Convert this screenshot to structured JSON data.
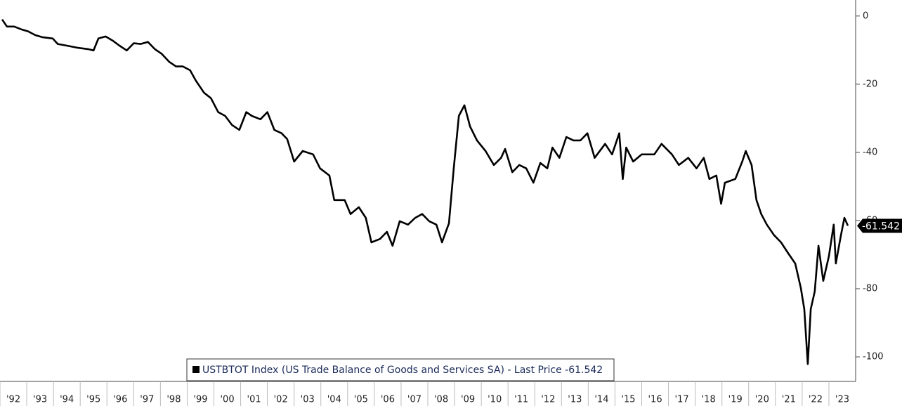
{
  "chart_data": {
    "type": "line",
    "x": [
      1992.08,
      1992.26,
      1992.53,
      1992.79,
      1993.05,
      1993.32,
      1993.58,
      1993.97,
      1994.16,
      1994.5,
      1994.89,
      1995.29,
      1995.5,
      1995.68,
      1995.95,
      1996.21,
      1996.47,
      1996.74,
      1997.0,
      1997.26,
      1997.53,
      1997.79,
      1998.05,
      1998.32,
      1998.58,
      1998.84,
      1999.11,
      1999.32,
      1999.63,
      1999.89,
      2000.16,
      2000.42,
      2000.68,
      2000.95,
      2001.21,
      2001.42,
      2001.74,
      2002.0,
      2002.26,
      2002.53,
      2002.74,
      2003.0,
      2003.32,
      2003.71,
      2003.97,
      2004.32,
      2004.5,
      2004.89,
      2005.11,
      2005.42,
      2005.68,
      2005.89,
      2006.21,
      2006.47,
      2006.68,
      2006.95,
      2007.26,
      2007.53,
      2007.79,
      2008.05,
      2008.32,
      2008.53,
      2008.79,
      2008.97,
      2009.16,
      2009.37,
      2009.58,
      2009.84,
      2010.16,
      2010.47,
      2010.74,
      2010.89,
      2011.16,
      2011.42,
      2011.68,
      2011.95,
      2012.21,
      2012.47,
      2012.66,
      2012.92,
      2013.18,
      2013.45,
      2013.71,
      2013.97,
      2014.24,
      2014.63,
      2014.89,
      2015.16,
      2015.29,
      2015.42,
      2015.68,
      2016.0,
      2016.47,
      2016.74,
      2017.13,
      2017.39,
      2017.74,
      2018.05,
      2018.32,
      2018.53,
      2018.79,
      2018.97,
      2019.11,
      2019.5,
      2019.76,
      2019.89,
      2020.11,
      2020.29,
      2020.47,
      2020.68,
      2020.95,
      2021.21,
      2021.47,
      2021.74,
      2021.95,
      2022.08,
      2022.21,
      2022.32,
      2022.47,
      2022.61,
      2022.79,
      2023.0,
      2023.18,
      2023.26,
      2023.45,
      2023.58,
      2023.71
    ],
    "series": [
      {
        "name": "USTBTOT Index (US Trade Balance of Goods and Services SA) - Last Price",
        "color": "#000000",
        "values": [
          -1.0,
          -3.1,
          -3.1,
          -3.9,
          -4.5,
          -5.6,
          -6.2,
          -6.6,
          -8.2,
          -8.7,
          -9.3,
          -9.7,
          -10.1,
          -6.6,
          -6.0,
          -7.2,
          -8.7,
          -10.1,
          -8.0,
          -8.2,
          -7.6,
          -9.7,
          -11.1,
          -13.4,
          -14.8,
          -14.8,
          -15.9,
          -18.9,
          -22.5,
          -24.1,
          -28.2,
          -29.3,
          -32.0,
          -33.4,
          -28.2,
          -29.3,
          -30.3,
          -28.2,
          -33.4,
          -34.4,
          -36.1,
          -42.7,
          -39.6,
          -40.6,
          -44.7,
          -46.8,
          -54.0,
          -54.0,
          -58.1,
          -56.1,
          -59.2,
          -66.4,
          -65.4,
          -63.3,
          -67.4,
          -60.2,
          -61.2,
          -59.2,
          -58.1,
          -60.2,
          -61.2,
          -66.4,
          -60.8,
          -44.7,
          -29.3,
          -26.2,
          -32.4,
          -36.5,
          -39.6,
          -43.7,
          -41.6,
          -39.0,
          -45.8,
          -43.7,
          -44.7,
          -48.9,
          -43.1,
          -44.7,
          -38.6,
          -41.6,
          -35.5,
          -36.5,
          -36.5,
          -34.4,
          -41.6,
          -37.5,
          -40.6,
          -34.4,
          -47.8,
          -38.6,
          -42.7,
          -40.6,
          -40.6,
          -37.5,
          -40.6,
          -43.7,
          -41.6,
          -44.7,
          -41.6,
          -47.8,
          -46.8,
          -55.1,
          -48.9,
          -47.8,
          -42.7,
          -39.6,
          -43.7,
          -54.0,
          -58.1,
          -61.2,
          -64.3,
          -66.4,
          -69.5,
          -72.6,
          -79.8,
          -86.0,
          -102.1,
          -86.0,
          -80.8,
          -67.4,
          -77.7,
          -70.5,
          -61.2,
          -72.6,
          -64.3,
          -59.2,
          -61.542
        ]
      }
    ],
    "xlim": [
      1992,
      2024
    ],
    "xticks": [
      {
        "value": 1992.5,
        "label": "'92"
      },
      {
        "value": 1993.5,
        "label": "'93"
      },
      {
        "value": 1994.5,
        "label": "'94"
      },
      {
        "value": 1995.5,
        "label": "'95"
      },
      {
        "value": 1996.5,
        "label": "'96"
      },
      {
        "value": 1997.5,
        "label": "'97"
      },
      {
        "value": 1998.5,
        "label": "'98"
      },
      {
        "value": 1999.5,
        "label": "'99"
      },
      {
        "value": 2000.5,
        "label": "'00"
      },
      {
        "value": 2001.5,
        "label": "'01"
      },
      {
        "value": 2002.5,
        "label": "'02"
      },
      {
        "value": 2003.5,
        "label": "'03"
      },
      {
        "value": 2004.5,
        "label": "'04"
      },
      {
        "value": 2005.5,
        "label": "'05"
      },
      {
        "value": 2006.5,
        "label": "'06"
      },
      {
        "value": 2007.5,
        "label": "'07"
      },
      {
        "value": 2008.5,
        "label": "'08"
      },
      {
        "value": 2009.5,
        "label": "'09"
      },
      {
        "value": 2010.5,
        "label": "'10"
      },
      {
        "value": 2011.5,
        "label": "'11"
      },
      {
        "value": 2012.5,
        "label": "'12"
      },
      {
        "value": 2013.5,
        "label": "'13"
      },
      {
        "value": 2014.5,
        "label": "'14"
      },
      {
        "value": 2015.5,
        "label": "'15"
      },
      {
        "value": 2016.5,
        "label": "'16"
      },
      {
        "value": 2017.5,
        "label": "'17"
      },
      {
        "value": 2018.5,
        "label": "'18"
      },
      {
        "value": 2019.5,
        "label": "'19"
      },
      {
        "value": 2020.5,
        "label": "'20"
      },
      {
        "value": 2021.5,
        "label": "'21"
      },
      {
        "value": 2022.5,
        "label": "'22"
      },
      {
        "value": 2023.5,
        "label": "'23"
      }
    ],
    "ylim": [
      -107.2,
      4.7
    ],
    "yticks": [
      0,
      -20,
      -40,
      -60,
      -80,
      -100
    ]
  }
}
